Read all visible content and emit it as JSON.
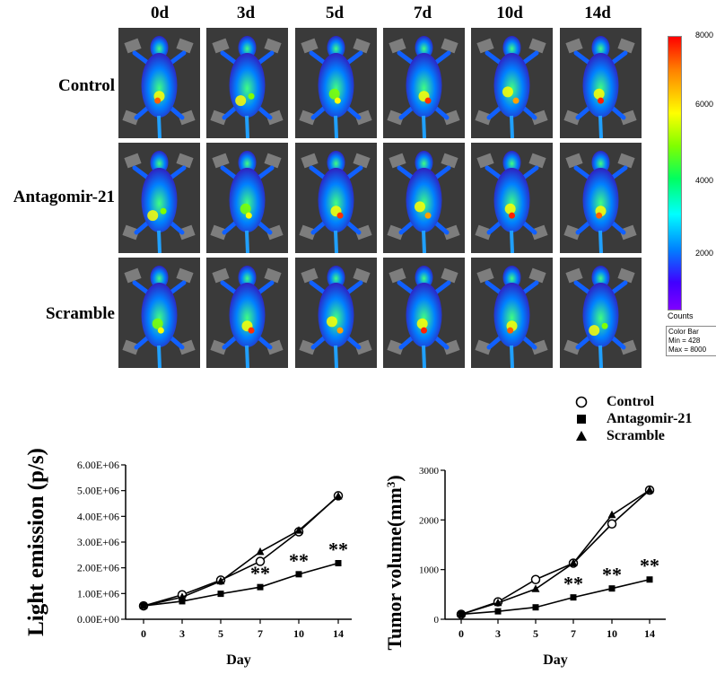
{
  "days": [
    "0d",
    "3d",
    "5d",
    "7d",
    "10d",
    "14d"
  ],
  "groups": [
    "Control",
    "Antagomir-21",
    "Scramble"
  ],
  "colorbar": {
    "ticks": [
      "8000",
      "6000",
      "4000",
      "2000"
    ],
    "counts_label": "Counts",
    "box_title": "Color Bar",
    "box_min": "Min = 428",
    "box_max": "Max = 8000"
  },
  "legend": {
    "items": [
      {
        "name": "Control",
        "marker": "open-circle"
      },
      {
        "name": "Antagomir-21",
        "marker": "filled-square"
      },
      {
        "name": "Scramble",
        "marker": "filled-triangle"
      }
    ]
  },
  "chart_data": [
    {
      "type": "line",
      "title": "",
      "xlabel": "Day",
      "ylabel": "Light emission (p/s)",
      "categories": [
        "0",
        "3",
        "5",
        "7",
        "10",
        "14"
      ],
      "yticks": [
        "0.00E+00",
        "1.00E+06",
        "2.00E+06",
        "3.00E+06",
        "4.00E+06",
        "5.00E+06",
        "6.00E+06"
      ],
      "ylim": [
        0,
        6000000
      ],
      "series": [
        {
          "name": "Control",
          "values": [
            520000,
            950000,
            1520000,
            2250000,
            3400000,
            4800000
          ]
        },
        {
          "name": "Antagomir-21",
          "values": [
            520000,
            700000,
            990000,
            1250000,
            1750000,
            2180000
          ]
        },
        {
          "name": "Scramble",
          "values": [
            520000,
            860000,
            1480000,
            2620000,
            3450000,
            4780000
          ]
        }
      ],
      "annotations": [
        {
          "label": "**",
          "x": "7"
        },
        {
          "label": "**",
          "x": "10"
        },
        {
          "label": "**",
          "x": "14"
        }
      ]
    },
    {
      "type": "line",
      "title": "",
      "xlabel": "Day",
      "ylabel": "Tumor volume(mm3)",
      "ylabel_main": "Tumor volume(mm",
      "ylabel_sup": "3",
      "ylabel_end": ")",
      "categories": [
        "0",
        "3",
        "5",
        "7",
        "10",
        "14"
      ],
      "yticks": [
        "0",
        "1000",
        "2000",
        "3000"
      ],
      "ylim": [
        0,
        3000
      ],
      "series": [
        {
          "name": "Control",
          "values": [
            100,
            350,
            800,
            1130,
            1920,
            2600
          ]
        },
        {
          "name": "Antagomir-21",
          "values": [
            100,
            160,
            240,
            440,
            620,
            800
          ]
        },
        {
          "name": "Scramble",
          "values": [
            100,
            330,
            610,
            1130,
            2100,
            2600
          ]
        }
      ],
      "annotations": [
        {
          "label": "**",
          "x": "7"
        },
        {
          "label": "**",
          "x": "10"
        },
        {
          "label": "**",
          "x": "14"
        }
      ]
    }
  ]
}
